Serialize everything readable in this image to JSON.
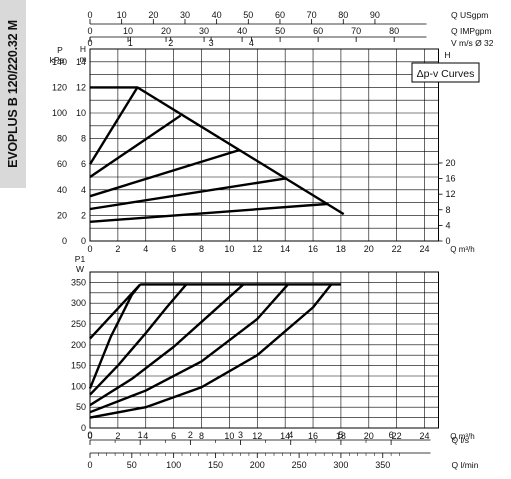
{
  "model_label": "EVOPLUS B 120/220.32 M",
  "chart_data": [
    {
      "type": "line",
      "name": "head",
      "legend": "Δp-v Curves",
      "grid": true,
      "x_unit_label": "Q m³/h",
      "x_ticks": [
        0,
        2,
        4,
        6,
        8,
        10,
        12,
        14,
        16,
        18,
        20,
        22,
        24
      ],
      "xlim": [
        0,
        25
      ],
      "y_left": {
        "labels": [
          "P",
          "kPa",
          "H",
          "m"
        ],
        "ticks_m": [
          0,
          2,
          4,
          6,
          8,
          10,
          12,
          14
        ],
        "ticks_kpa": [
          0,
          20,
          40,
          60,
          80,
          100,
          120,
          140
        ],
        "ylim": [
          0,
          15
        ]
      },
      "y_right": {
        "labels": [
          "H",
          "ft"
        ],
        "ticks": [
          0,
          4,
          8,
          12,
          16,
          20
        ]
      },
      "top_axes": [
        {
          "label": "Q USgpm",
          "ticks": [
            0,
            10,
            20,
            30,
            40,
            50,
            60,
            70,
            80,
            90
          ]
        },
        {
          "label": "Q IMPgpm",
          "ticks": [
            0,
            10,
            20,
            30,
            40,
            50,
            60,
            70,
            80
          ]
        },
        {
          "label": "V m/s Ø 32",
          "ticks": [
            0,
            1,
            2,
            3,
            4
          ]
        }
      ],
      "max_curve": {
        "x": [
          0,
          3.4,
          18.2
        ],
        "y": [
          12,
          12,
          2.1
        ]
      },
      "series": [
        {
          "x": [
            0,
            3.4
          ],
          "y": [
            6.0,
            12.0
          ]
        },
        {
          "x": [
            0,
            6.5
          ],
          "y": [
            5.0,
            9.8
          ]
        },
        {
          "x": [
            0,
            10.7
          ],
          "y": [
            3.5,
            7.1
          ]
        },
        {
          "x": [
            0,
            14.1
          ],
          "y": [
            2.5,
            4.9
          ]
        },
        {
          "x": [
            0,
            17.1
          ],
          "y": [
            1.5,
            2.9
          ]
        }
      ]
    },
    {
      "type": "line",
      "name": "power",
      "grid": true,
      "x_unit_label": "Q m³/h",
      "x_ticks": [
        0,
        2,
        4,
        6,
        8,
        10,
        12,
        14,
        16,
        18,
        20,
        22,
        24
      ],
      "xlim": [
        0,
        25
      ],
      "y": {
        "labels": [
          "P1",
          "W"
        ],
        "ticks": [
          0,
          50,
          100,
          150,
          200,
          250,
          300,
          350
        ],
        "ylim": [
          0,
          375
        ]
      },
      "bottom_axes": [
        {
          "label": "Q l/s",
          "ticks": [
            0,
            1,
            2,
            3,
            4,
            5,
            6
          ]
        },
        {
          "label": "Q l/min",
          "ticks": [
            0,
            50,
            100,
            150,
            200,
            250,
            300,
            350
          ]
        }
      ],
      "max_line": {
        "x": [
          3.6,
          18.0
        ],
        "y": [
          345,
          345
        ]
      },
      "series": [
        {
          "x": [
            0,
            3.6
          ],
          "y": [
            215,
            345
          ]
        },
        {
          "x": [
            0,
            1.5,
            3.0,
            3.6
          ],
          "y": [
            95,
            220,
            320,
            345
          ]
        },
        {
          "x": [
            0,
            2,
            4,
            5.5,
            6.9
          ],
          "y": [
            80,
            150,
            228,
            290,
            345
          ]
        },
        {
          "x": [
            0,
            3,
            6,
            9,
            11.0
          ],
          "y": [
            55,
            118,
            195,
            285,
            345
          ]
        },
        {
          "x": [
            0,
            4,
            8,
            12,
            14.2
          ],
          "y": [
            38,
            90,
            160,
            262,
            345
          ]
        },
        {
          "x": [
            0,
            4,
            8,
            12,
            16,
            17.3
          ],
          "y": [
            25,
            50,
            98,
            175,
            290,
            345
          ]
        }
      ]
    }
  ]
}
